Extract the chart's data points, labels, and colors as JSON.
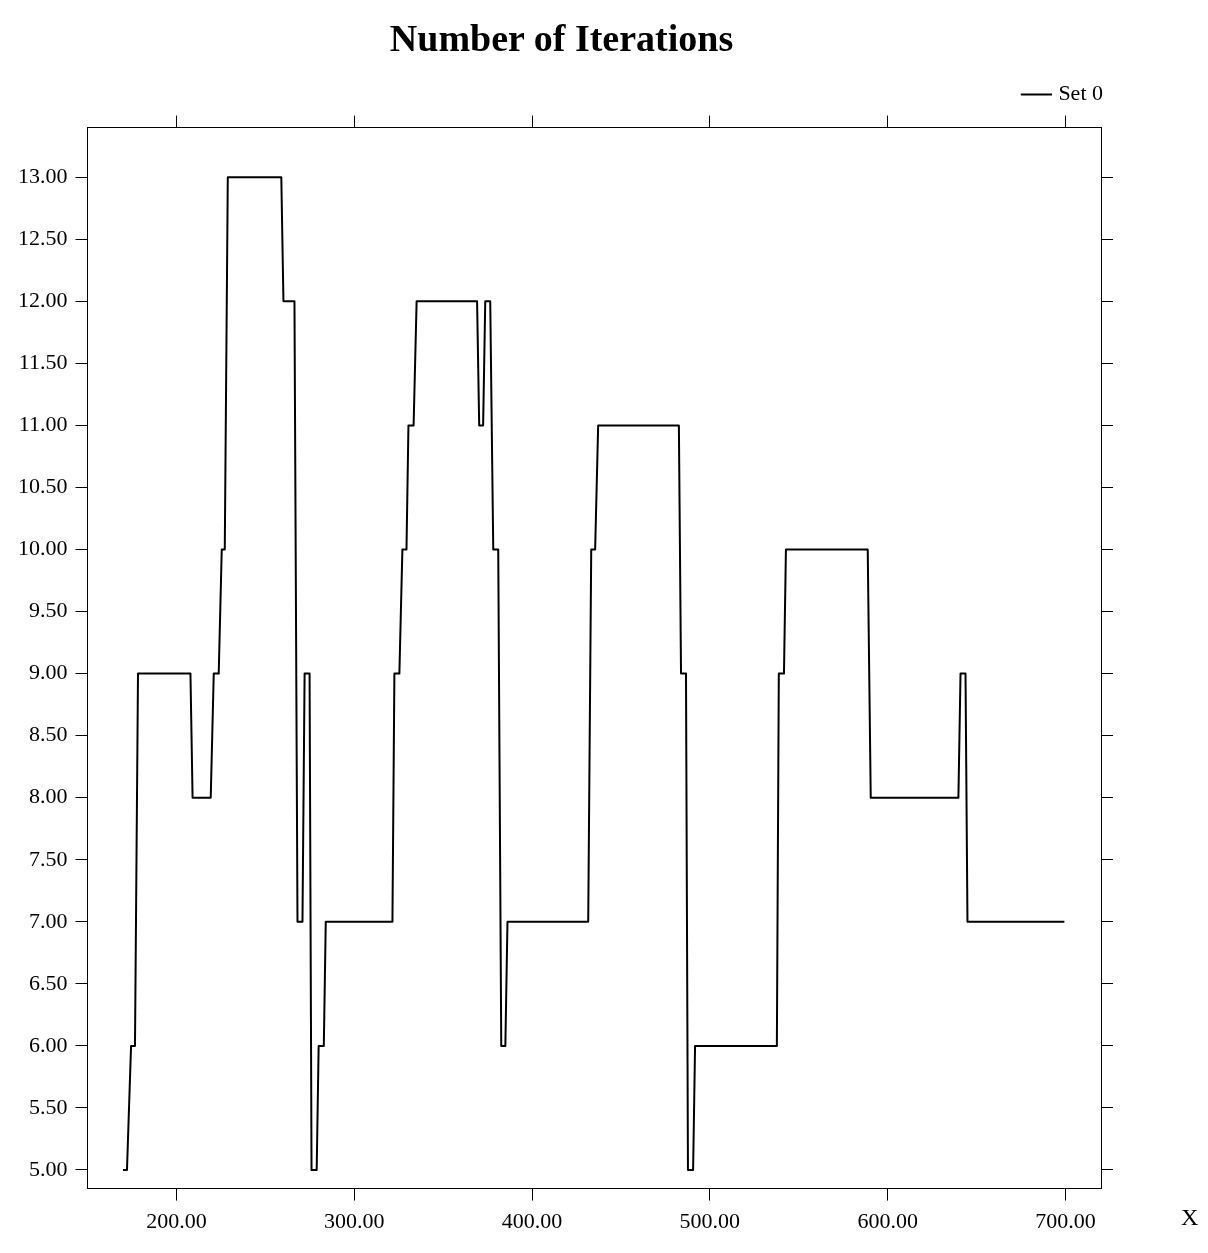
{
  "chart_data": {
    "type": "line",
    "title": "Number of Iterations",
    "xlabel": "X",
    "xlim": [
      150,
      720
    ],
    "ylim": [
      4.85,
      13.4
    ],
    "xticks": [
      {
        "value": 200,
        "label": "200.00"
      },
      {
        "value": 300,
        "label": "300.00"
      },
      {
        "value": 400,
        "label": "400.00"
      },
      {
        "value": 500,
        "label": "500.00"
      },
      {
        "value": 600,
        "label": "600.00"
      },
      {
        "value": 700,
        "label": "700.00"
      }
    ],
    "yticks": [
      {
        "value": 5,
        "label": "5.00"
      },
      {
        "value": 5.5,
        "label": "5.50"
      },
      {
        "value": 6,
        "label": "6.00"
      },
      {
        "value": 6.5,
        "label": "6.50"
      },
      {
        "value": 7,
        "label": "7.00"
      },
      {
        "value": 7.5,
        "label": "7.50"
      },
      {
        "value": 8,
        "label": "8.00"
      },
      {
        "value": 8.5,
        "label": "8.50"
      },
      {
        "value": 9,
        "label": "9.00"
      },
      {
        "value": 9.5,
        "label": "9.50"
      },
      {
        "value": 10,
        "label": "10.00"
      },
      {
        "value": 10.5,
        "label": "10.50"
      },
      {
        "value": 11,
        "label": "11.00"
      },
      {
        "value": 11.5,
        "label": "11.50"
      },
      {
        "value": 12,
        "label": "12.00"
      },
      {
        "value": 12.5,
        "label": "12.50"
      },
      {
        "value": 13,
        "label": "13.00"
      }
    ],
    "grid": false,
    "legend": "top right",
    "marker": "none",
    "line_style": "solid",
    "series": [
      {
        "name": "Set 0",
        "color": "#000000",
        "x": [
          170,
          172.2,
          174.5,
          176.7,
          178.4,
          207.9,
          209.1,
          219.3,
          221,
          223.8,
          225.5,
          227.2,
          228.9,
          259,
          260.2,
          266.4,
          268.1,
          270.9,
          272.1,
          274.9,
          276,
          278.9,
          280,
          282.9,
          284,
          321.5,
          322.6,
          325.4,
          327.1,
          329.4,
          330.5,
          333.4,
          335.1,
          369.1,
          370.3,
          372.5,
          373.7,
          376.5,
          378.2,
          381,
          382.7,
          385,
          386.2,
          431.6,
          433.3,
          435.5,
          437.2,
          482.6,
          483.8,
          486.6,
          487.7,
          490.6,
          491.7,
          537.7,
          538.8,
          541.7,
          542.8,
          588.8,
          590.5,
          639.8,
          641,
          643.8,
          644.9,
          699.4
        ],
        "values": [
          5,
          5,
          6,
          6,
          9,
          9,
          8,
          8,
          9,
          9,
          10,
          10,
          13,
          13,
          12,
          12,
          7,
          7,
          9,
          9,
          5,
          5,
          6,
          6,
          7,
          7,
          9,
          9,
          10,
          10,
          11,
          11,
          12,
          12,
          11,
          11,
          12,
          12,
          10,
          10,
          6,
          6,
          7,
          7,
          10,
          10,
          11,
          11,
          9,
          9,
          5,
          5,
          6,
          6,
          9,
          9,
          10,
          10,
          8,
          8,
          9,
          9,
          7,
          7
        ]
      }
    ]
  }
}
